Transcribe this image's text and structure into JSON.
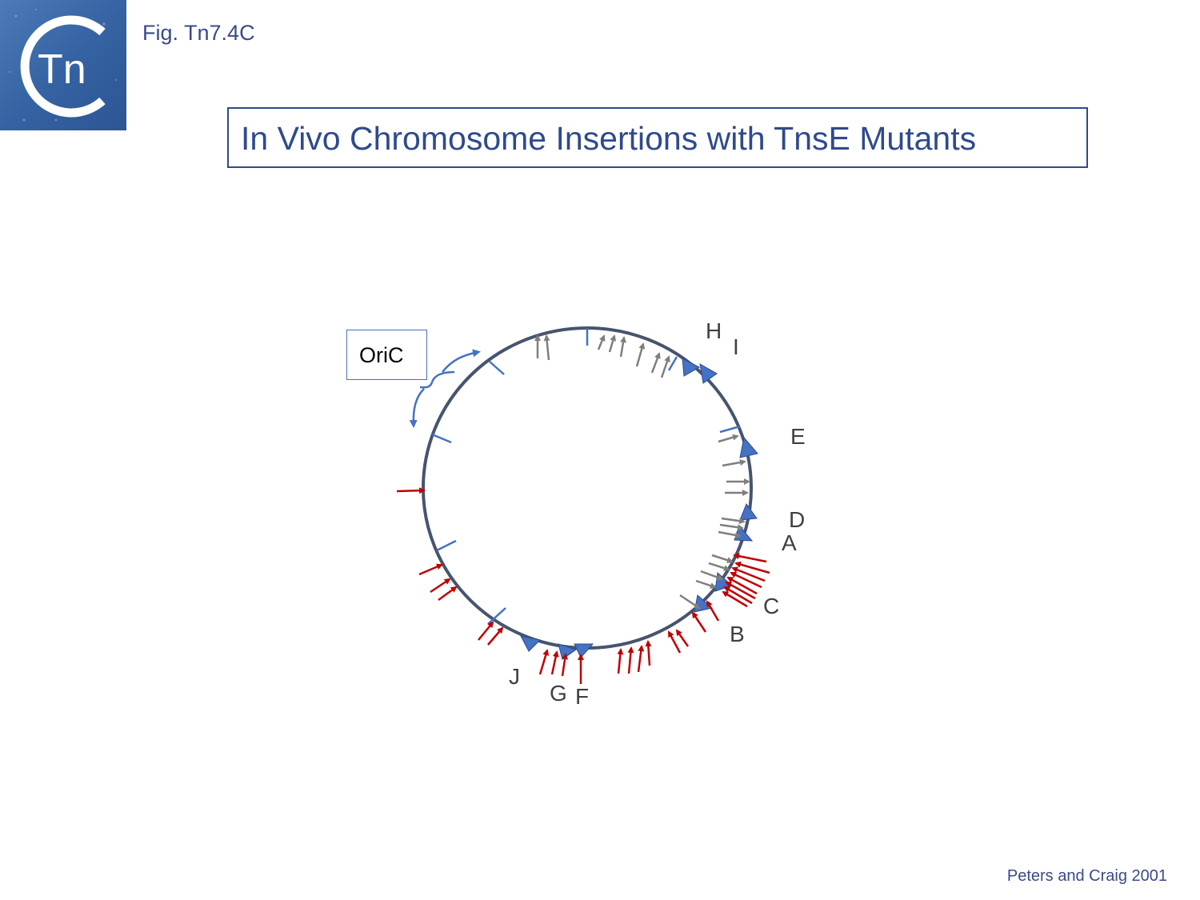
{
  "figure_label": "Fig. Tn7.4C",
  "title": "In Vivo Chromosome Insertions with TnsE Mutants",
  "logo": {
    "text": "Tn",
    "letter": "C"
  },
  "origin_label": "OriC",
  "citation": "Peters and Craig 2001",
  "colors": {
    "circle": "#46546e",
    "marker": "#4472c4",
    "terminator": "#4472c4",
    "insertion_gray": "#7f7f7f",
    "insertion_red": "#c00000",
    "title": "#2f4a8c"
  },
  "terminator_sites": [
    {
      "label": "H"
    },
    {
      "label": "I"
    },
    {
      "label": "E"
    },
    {
      "label": "D"
    },
    {
      "label": "A"
    },
    {
      "label": "C"
    },
    {
      "label": "B"
    },
    {
      "label": "J"
    },
    {
      "label": "G"
    },
    {
      "label": "F"
    }
  ]
}
